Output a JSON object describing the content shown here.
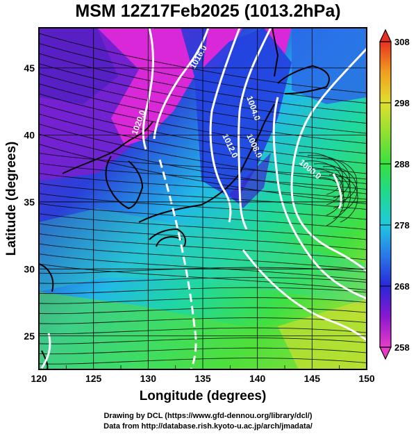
{
  "title": "MSM 12Z17Feb2025 (1013.2hPa)",
  "axes": {
    "xlabel": "Longitude (degrees)",
    "ylabel": "Latitude  (degrees)",
    "xlim": [
      120,
      150
    ],
    "ylim": [
      22.5,
      48
    ],
    "xticks": [
      "120",
      "125",
      "130",
      "135",
      "140",
      "145",
      "150"
    ],
    "yticks": [
      "25",
      "30",
      "35",
      "40",
      "45"
    ]
  },
  "colorbar": {
    "ticks": [
      "308",
      "298",
      "288",
      "278",
      "268",
      "258"
    ],
    "min": 258,
    "max": 308,
    "colors": [
      "#e83cc8",
      "#8a18d0",
      "#2828d8",
      "#2a78e8",
      "#20c8e0",
      "#20d890",
      "#38e040",
      "#90e030",
      "#e0e030",
      "#f0a020",
      "#e83020"
    ]
  },
  "contour_labels": [
    "1016.0",
    "1020.0",
    "1012.0",
    "1008.0",
    "1004.0",
    "1000.0",
    "1016.0",
    "1020.0"
  ],
  "credits": {
    "line1": "Drawing by DCL (https://www.gfd-dennou.org/library/dcl/)",
    "line2": "Data from http://database.rish.kyoto-u.ac.jp/arch/jmadata/"
  }
}
